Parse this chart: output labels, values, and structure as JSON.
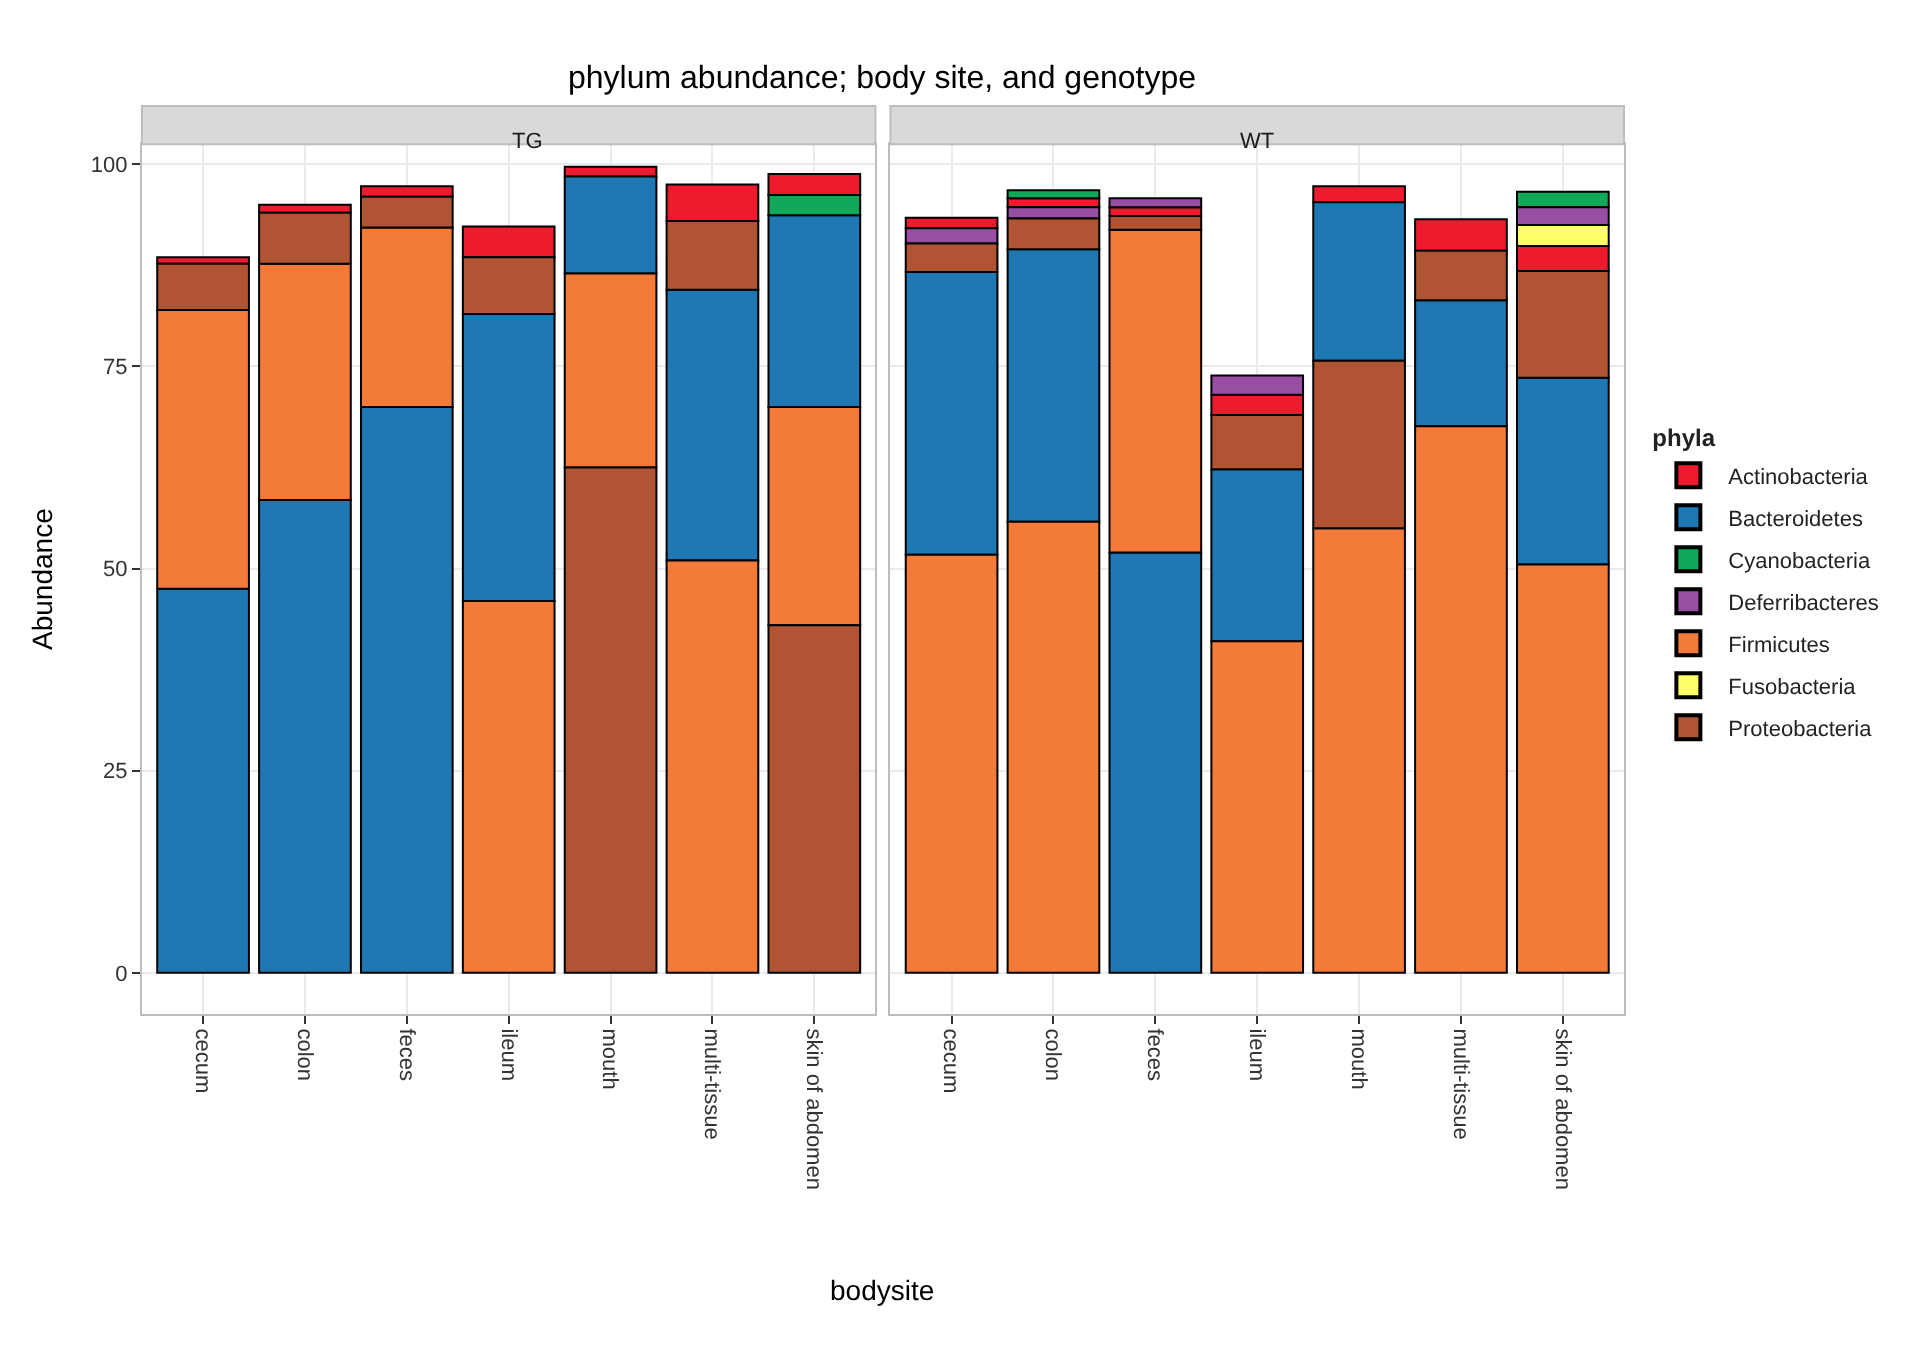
{
  "chart_data": [
    {
      "type": "bar",
      "title": "phylum abundance; body site, and genotype",
      "subtitle": "TG",
      "ylabel": "Abundance",
      "categories": [
        "cecum",
        "colon",
        "feces",
        "ileum",
        "mouth",
        "multi-tissue",
        "skin of abdomen"
      ],
      "ylim": [
        -5.1,
        102.5
      ],
      "yticks": [
        0,
        25,
        50,
        75,
        100
      ],
      "grid": true,
      "tick_labels": "xy",
      "legend": "right",
      "series": [
        {
          "name": "Actinobacteria",
          "color": "#ee1b2e",
          "base": [
            87.7,
            94,
            96,
            88.5,
            98.5,
            93,
            96.2
          ],
          "values": [
            0.8,
            1,
            1.3,
            3.8,
            1.2,
            4.5,
            2.6
          ]
        },
        {
          "name": "Bacteroidetes",
          "color": "#1f78b4",
          "base": [
            0,
            0,
            0,
            46,
            86.5,
            51,
            70
          ],
          "values": [
            47.5,
            58.5,
            70,
            35.5,
            12,
            33.5,
            23.7
          ]
        },
        {
          "name": "Cyanobacteria",
          "color": "#12a85a",
          "base": [
            null,
            null,
            null,
            null,
            null,
            null,
            93.7
          ],
          "values": [
            null,
            null,
            null,
            null,
            null,
            null,
            2.5
          ]
        },
        {
          "name": "Firmicutes",
          "color": "#f47a3a",
          "base": [
            47.5,
            58.5,
            70,
            0,
            62.5,
            0,
            43
          ],
          "values": [
            34.5,
            29.2,
            22.2,
            46,
            24,
            51,
            27
          ]
        },
        {
          "name": "Proteobacteria",
          "color": "#b05434",
          "base": [
            82,
            87.7,
            92.2,
            81.5,
            0,
            84.5,
            0
          ],
          "values": [
            5.7,
            6.3,
            3.8,
            7,
            62.5,
            8.5,
            43
          ]
        }
      ]
    },
    {
      "type": "bar",
      "subtitle": "WT",
      "xlabel": "bodysite",
      "legend_title": "phyla",
      "legend": "right",
      "categories": [
        "cecum",
        "colon",
        "feces",
        "ileum",
        "mouth",
        "multi-tissue",
        "skin of abdomen"
      ],
      "ylim": [
        -5.1,
        102.5
      ],
      "grid": true,
      "tick_labels": "x",
      "series": [
        {
          "name": "Actinobacteria",
          "color": "#ee1b2e",
          "base": [
            92.1,
            94.7,
            93.6,
            69,
            95.3,
            89.3,
            86.8
          ],
          "values": [
            1.3,
            1.1,
            1.1,
            2.5,
            2.0,
            3.9,
            3.1
          ]
        },
        {
          "name": "Bacteroidetes",
          "color": "#1f78b4",
          "base": [
            51.7,
            55.8,
            0,
            41,
            75.7,
            67.6,
            50.5
          ],
          "values": [
            35,
            33.7,
            52,
            21.3,
            19.6,
            15.6,
            23.1
          ]
        },
        {
          "name": "Cyanobacteria",
          "color": "#12a85a",
          "base": [
            null,
            95.8,
            null,
            null,
            null,
            null,
            94.7
          ],
          "values": [
            null,
            1.0,
            null,
            null,
            null,
            null,
            1.9
          ]
        },
        {
          "name": "Deferribacteres",
          "color": "#984ea3",
          "base": [
            90.2,
            93.3,
            94.7,
            71.5,
            null,
            null,
            92.5
          ],
          "values": [
            1.9,
            1.4,
            1.1,
            2.4,
            null,
            null,
            2.2
          ]
        },
        {
          "name": "Firmicutes",
          "color": "#f47a3a",
          "base": [
            0,
            0,
            52,
            0,
            0,
            0,
            0
          ],
          "values": [
            51.7,
            55.8,
            39.9,
            41,
            55,
            67.6,
            50.5
          ]
        },
        {
          "name": "Fusobacteria",
          "color": "#ffff66",
          "base": [
            null,
            null,
            null,
            null,
            null,
            null,
            89.9
          ],
          "values": [
            null,
            null,
            null,
            null,
            null,
            null,
            2.6
          ]
        },
        {
          "name": "Proteobacteria",
          "color": "#b05434",
          "base": [
            86.7,
            89.5,
            91.9,
            62.3,
            55,
            83.2,
            73.6
          ],
          "values": [
            3.5,
            3.8,
            1.7,
            6.7,
            20.7,
            6.1,
            13.2
          ]
        }
      ]
    }
  ]
}
